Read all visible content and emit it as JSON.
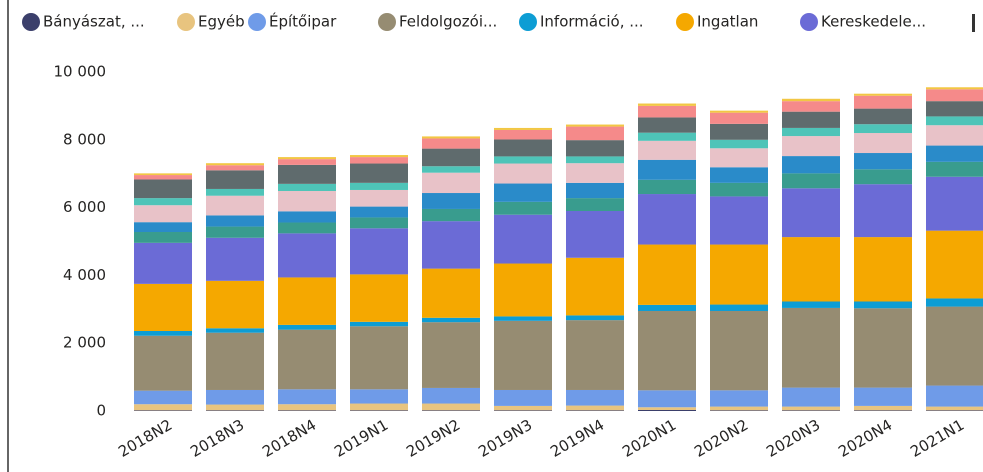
{
  "chart_data": {
    "type": "stacked_bar",
    "categories": [
      "2018N2",
      "2018N3",
      "2018N4",
      "2019N1",
      "2019N2",
      "2019N3",
      "2019N4",
      "2020N1",
      "2020N2",
      "2020N3",
      "2020N4",
      "2021N1"
    ],
    "series": [
      {
        "name": "Bányászat, ...",
        "color": "#3b3f6b",
        "values": [
          20,
          20,
          20,
          20,
          20,
          20,
          20,
          30,
          20,
          20,
          20,
          20
        ]
      },
      {
        "name": "Egyéb",
        "color": "#e8c47f",
        "values": [
          180,
          170,
          180,
          200,
          200,
          130,
          140,
          80,
          110,
          110,
          130,
          110
        ]
      },
      {
        "name": "Építőipar",
        "color": "#6f9be8",
        "values": [
          400,
          430,
          440,
          420,
          460,
          470,
          460,
          500,
          480,
          560,
          540,
          620
        ]
      },
      {
        "name": "Feldolgozói...",
        "color": "#968c72",
        "values": [
          1620,
          1690,
          1760,
          1860,
          1940,
          2040,
          2060,
          2340,
          2340,
          2350,
          2340,
          2330
        ]
      },
      {
        "name": "Információ, ...",
        "color": "#0d9dd4",
        "values": [
          140,
          130,
          140,
          130,
          130,
          130,
          140,
          180,
          190,
          190,
          200,
          240
        ]
      },
      {
        "name": "Ingatlan",
        "color": "#f5a800",
        "values": [
          1390,
          1400,
          1400,
          1400,
          1450,
          1560,
          1700,
          1780,
          1770,
          1900,
          1900,
          2000
        ]
      },
      {
        "name": "Kereskedele...",
        "color": "#6b6bd6",
        "values": [
          1210,
          1270,
          1300,
          1360,
          1400,
          1440,
          1380,
          1490,
          1420,
          1440,
          1560,
          1590
        ]
      },
      {
        "color": "#399c8e",
        "values": [
          320,
          330,
          320,
          320,
          360,
          380,
          380,
          420,
          400,
          440,
          440,
          440
        ]
      },
      {
        "color": "#2a8bc9",
        "values": [
          290,
          330,
          330,
          320,
          470,
          540,
          450,
          590,
          460,
          510,
          480,
          480
        ]
      },
      {
        "color": "#e8c2c8",
        "values": [
          500,
          580,
          600,
          490,
          600,
          590,
          580,
          560,
          560,
          590,
          590,
          600
        ]
      },
      {
        "color": "#4ec4b8",
        "values": [
          210,
          200,
          210,
          210,
          190,
          210,
          200,
          240,
          250,
          240,
          260,
          260
        ]
      },
      {
        "color": "#5f6b6d",
        "values": [
          550,
          550,
          560,
          570,
          520,
          500,
          480,
          450,
          470,
          480,
          460,
          450
        ]
      },
      {
        "color": "#f58a8a",
        "values": [
          130,
          150,
          170,
          190,
          300,
          280,
          400,
          340,
          330,
          310,
          380,
          350
        ]
      },
      {
        "color": "#f2c744",
        "values": [
          50,
          60,
          60,
          60,
          60,
          60,
          60,
          70,
          60,
          70,
          60,
          60
        ]
      }
    ],
    "ylim": [
      0,
      10000
    ],
    "yticks": [
      0,
      {
        "value": 2000,
        "label": "2 000"
      },
      {
        "value": 4000,
        "label": "4 000"
      },
      {
        "value": 6000,
        "label": "6 000"
      },
      {
        "value": 8000,
        "label": "8 000"
      },
      {
        "value": 10000,
        "label": "10 000"
      }
    ],
    "grid": false,
    "legend": "top"
  }
}
